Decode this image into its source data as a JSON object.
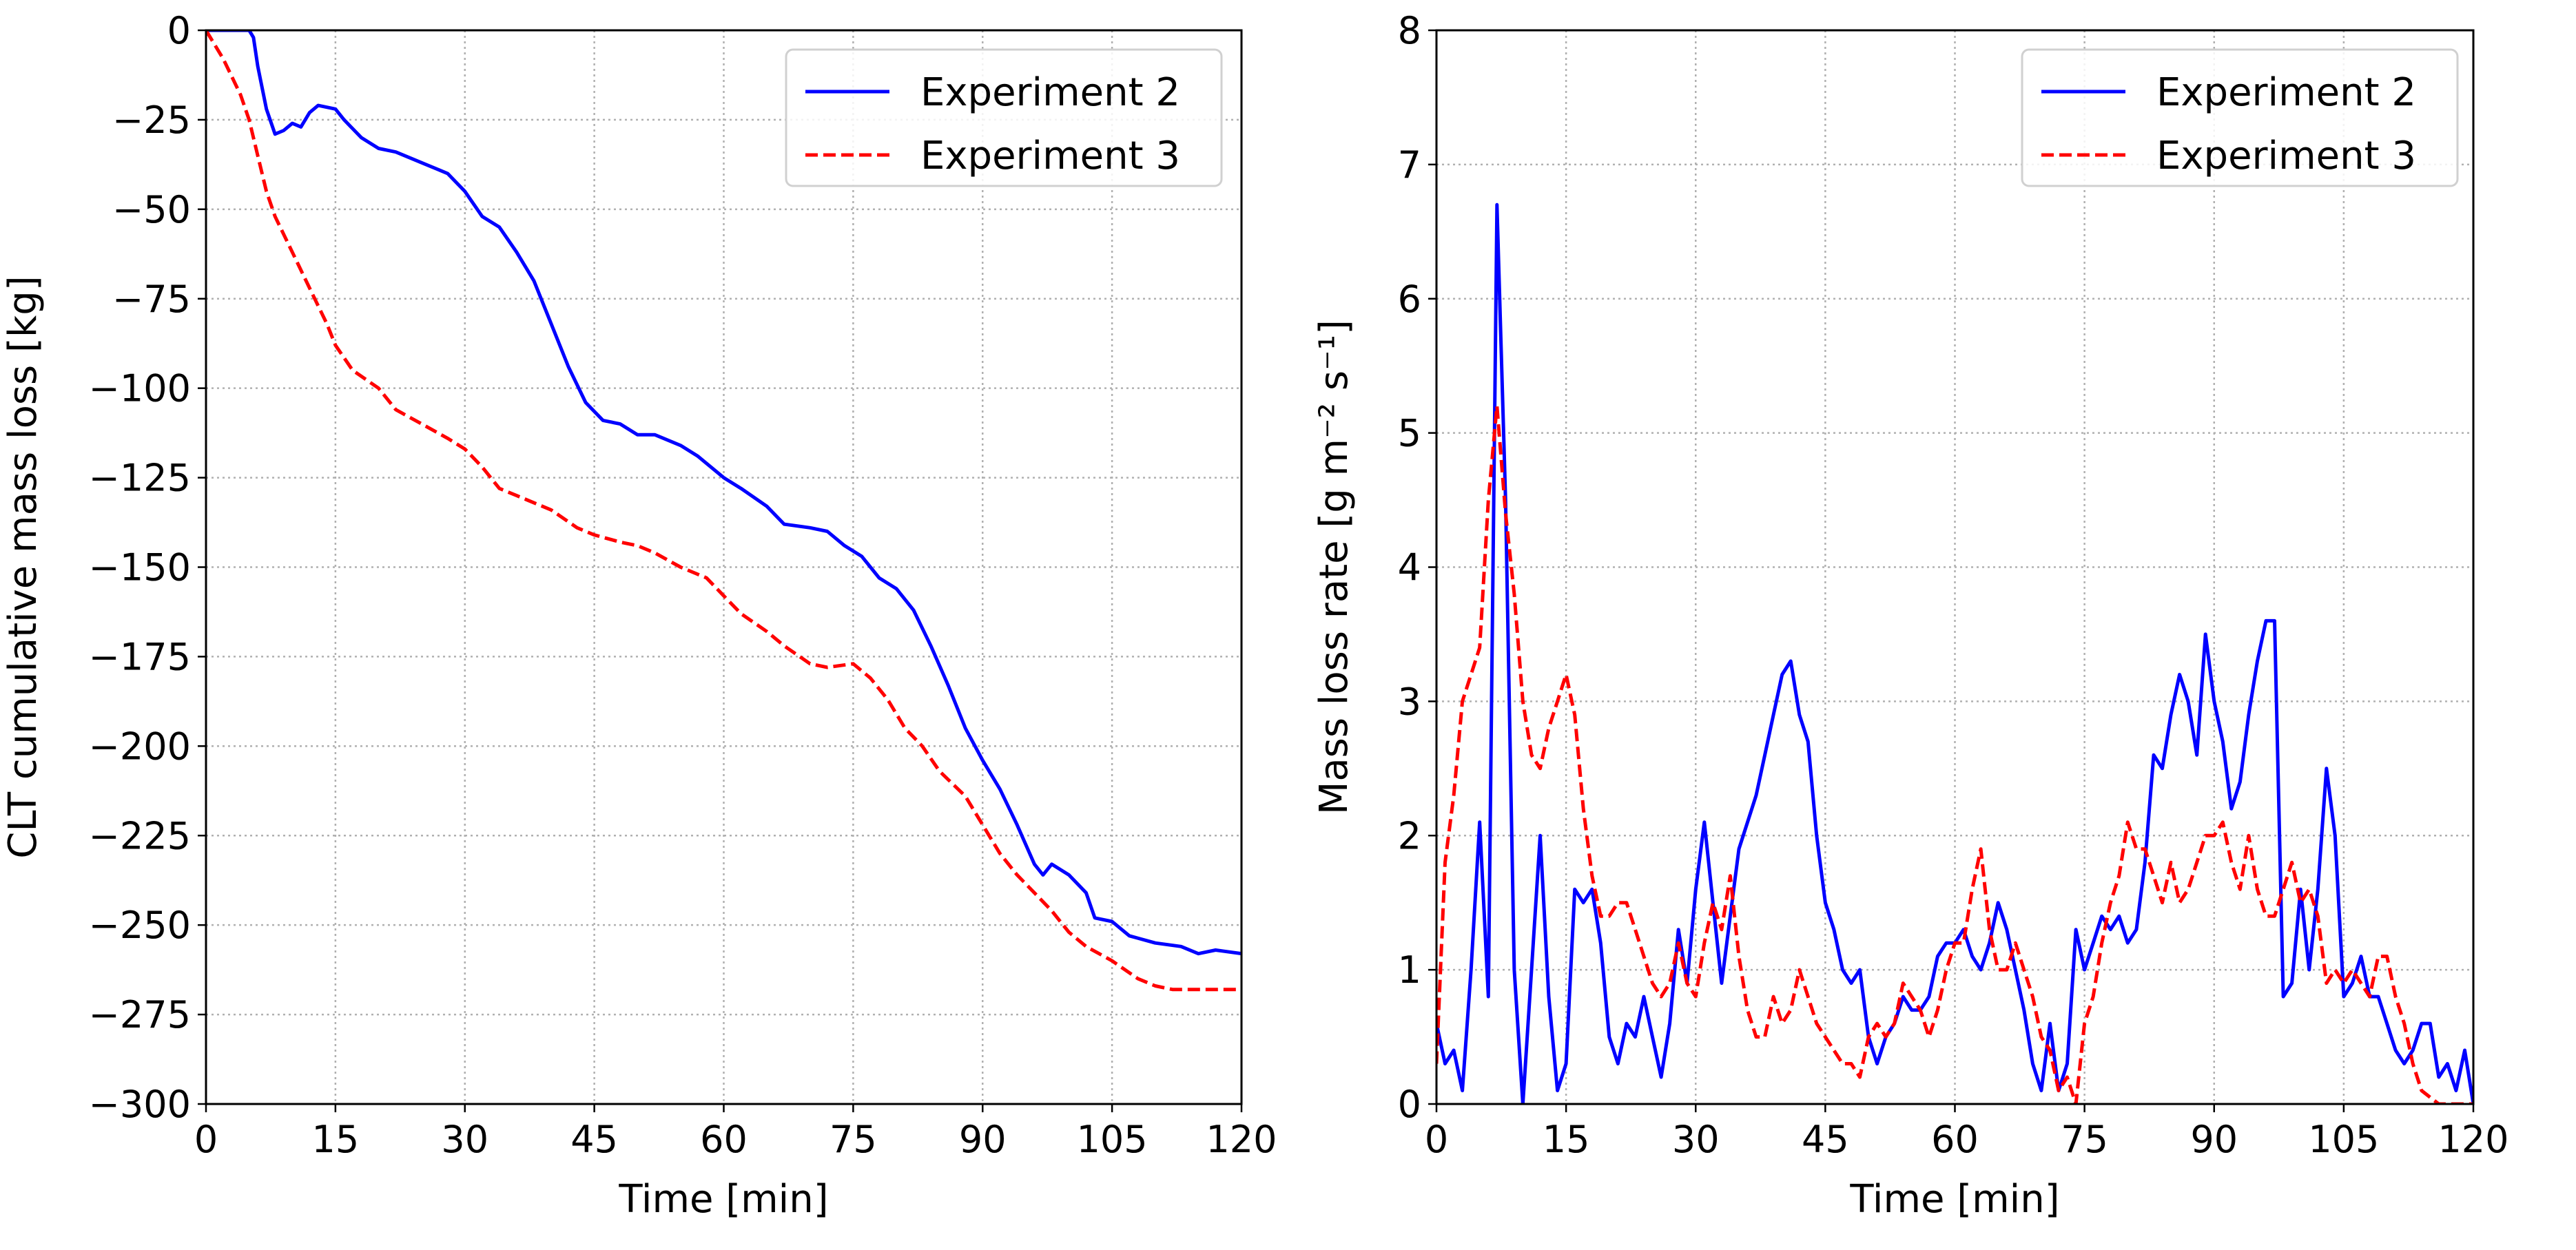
{
  "chart_data": [
    {
      "type": "line",
      "title": "",
      "xlabel": "Time [min]",
      "ylabel": "CLT cumulative mass loss [kg]",
      "xlim": [
        0,
        120
      ],
      "ylim": [
        -300,
        0
      ],
      "xticks": [
        0,
        15,
        30,
        45,
        60,
        75,
        90,
        105,
        120
      ],
      "yticks": [
        0,
        -25,
        -50,
        -75,
        -100,
        -125,
        -150,
        -175,
        -200,
        -225,
        -250,
        -275,
        -300
      ],
      "ytick_labels": [
        "0",
        "−25",
        "−50",
        "−75",
        "−100",
        "−125",
        "−150",
        "−175",
        "−200",
        "−225",
        "−250",
        "−275",
        "−300"
      ],
      "grid": true,
      "legend_position": "top-right",
      "series": [
        {
          "name": "Experiment 2",
          "color": "#0000ff",
          "style": "solid",
          "points": [
            [
              0,
              0
            ],
            [
              5,
              0
            ],
            [
              5.5,
              -2
            ],
            [
              6,
              -10
            ],
            [
              7,
              -22
            ],
            [
              8,
              -29
            ],
            [
              9,
              -28
            ],
            [
              10,
              -26
            ],
            [
              11,
              -27
            ],
            [
              12,
              -23
            ],
            [
              13,
              -21
            ],
            [
              15,
              -22
            ],
            [
              16,
              -25
            ],
            [
              18,
              -30
            ],
            [
              20,
              -33
            ],
            [
              22,
              -34
            ],
            [
              25,
              -37
            ],
            [
              27,
              -39
            ],
            [
              28,
              -40
            ],
            [
              30,
              -45
            ],
            [
              32,
              -52
            ],
            [
              34,
              -55
            ],
            [
              36,
              -62
            ],
            [
              38,
              -70
            ],
            [
              40,
              -82
            ],
            [
              42,
              -94
            ],
            [
              44,
              -104
            ],
            [
              46,
              -109
            ],
            [
              48,
              -110
            ],
            [
              50,
              -113
            ],
            [
              52,
              -113
            ],
            [
              55,
              -116
            ],
            [
              57,
              -119
            ],
            [
              60,
              -125
            ],
            [
              62,
              -128
            ],
            [
              65,
              -133
            ],
            [
              67,
              -138
            ],
            [
              70,
              -139
            ],
            [
              72,
              -140
            ],
            [
              74,
              -144
            ],
            [
              76,
              -147
            ],
            [
              78,
              -153
            ],
            [
              80,
              -156
            ],
            [
              82,
              -162
            ],
            [
              84,
              -172
            ],
            [
              86,
              -183
            ],
            [
              88,
              -195
            ],
            [
              90,
              -204
            ],
            [
              92,
              -212
            ],
            [
              94,
              -222
            ],
            [
              96,
              -233
            ],
            [
              97,
              -236
            ],
            [
              98,
              -233
            ],
            [
              100,
              -236
            ],
            [
              102,
              -241
            ],
            [
              103,
              -248
            ],
            [
              105,
              -249
            ],
            [
              107,
              -253
            ],
            [
              110,
              -255
            ],
            [
              113,
              -256
            ],
            [
              115,
              -258
            ],
            [
              117,
              -257
            ],
            [
              120,
              -258
            ]
          ]
        },
        {
          "name": "Experiment 3",
          "color": "#ff0000",
          "style": "dashed",
          "points": [
            [
              0,
              0
            ],
            [
              2,
              -8
            ],
            [
              4,
              -18
            ],
            [
              5,
              -25
            ],
            [
              6,
              -35
            ],
            [
              7,
              -45
            ],
            [
              8,
              -52
            ],
            [
              10,
              -62
            ],
            [
              12,
              -72
            ],
            [
              14,
              -82
            ],
            [
              15,
              -88
            ],
            [
              17,
              -95
            ],
            [
              20,
              -100
            ],
            [
              22,
              -106
            ],
            [
              25,
              -110
            ],
            [
              28,
              -114
            ],
            [
              30,
              -117
            ],
            [
              32,
              -122
            ],
            [
              34,
              -128
            ],
            [
              36,
              -130
            ],
            [
              40,
              -134
            ],
            [
              43,
              -139
            ],
            [
              45,
              -141
            ],
            [
              48,
              -143
            ],
            [
              50,
              -144
            ],
            [
              52,
              -146
            ],
            [
              55,
              -150
            ],
            [
              58,
              -153
            ],
            [
              60,
              -158
            ],
            [
              62,
              -163
            ],
            [
              65,
              -168
            ],
            [
              67,
              -172
            ],
            [
              70,
              -177
            ],
            [
              72,
              -178
            ],
            [
              75,
              -177
            ],
            [
              77,
              -181
            ],
            [
              79,
              -187
            ],
            [
              81,
              -195
            ],
            [
              83,
              -200
            ],
            [
              85,
              -207
            ],
            [
              88,
              -214
            ],
            [
              90,
              -222
            ],
            [
              92,
              -230
            ],
            [
              94,
              -236
            ],
            [
              96,
              -241
            ],
            [
              98,
              -246
            ],
            [
              100,
              -252
            ],
            [
              102,
              -256
            ],
            [
              105,
              -260
            ],
            [
              108,
              -265
            ],
            [
              110,
              -267
            ],
            [
              112,
              -268
            ],
            [
              120,
              -268
            ]
          ]
        }
      ]
    },
    {
      "type": "line",
      "title": "",
      "xlabel": "Time [min]",
      "ylabel": "Mass loss rate [g m⁻² s⁻¹]",
      "xlim": [
        0,
        120
      ],
      "ylim": [
        0,
        8
      ],
      "xticks": [
        0,
        15,
        30,
        45,
        60,
        75,
        90,
        105,
        120
      ],
      "yticks": [
        0,
        1,
        2,
        3,
        4,
        5,
        6,
        7,
        8
      ],
      "ytick_labels": [
        "0",
        "1",
        "2",
        "3",
        "4",
        "5",
        "6",
        "7",
        "8"
      ],
      "grid": true,
      "legend_position": "top-right",
      "series": [
        {
          "name": "Experiment 2",
          "color": "#0000ff",
          "style": "solid",
          "x_start": 0,
          "x_step": 1,
          "values": [
            0.6,
            0.3,
            0.4,
            0.1,
            1.0,
            2.1,
            0.8,
            6.7,
            4.5,
            1.0,
            0,
            1.0,
            2.0,
            0.8,
            0.1,
            0.3,
            1.6,
            1.5,
            1.6,
            1.2,
            0.5,
            0.3,
            0.6,
            0.5,
            0.8,
            0.5,
            0.2,
            0.6,
            1.3,
            0.9,
            1.6,
            2.1,
            1.5,
            0.9,
            1.4,
            1.9,
            2.1,
            2.3,
            2.6,
            2.9,
            3.2,
            3.3,
            2.9,
            2.7,
            2.0,
            1.5,
            1.3,
            1.0,
            0.9,
            1.0,
            0.5,
            0.3,
            0.5,
            0.6,
            0.8,
            0.7,
            0.7,
            0.8,
            1.1,
            1.2,
            1.2,
            1.3,
            1.1,
            1.0,
            1.2,
            1.5,
            1.3,
            1.0,
            0.7,
            0.3,
            0.1,
            0.6,
            0.1,
            0.3,
            1.3,
            1.0,
            1.2,
            1.4,
            1.3,
            1.4,
            1.2,
            1.3,
            1.8,
            2.6,
            2.5,
            2.9,
            3.2,
            3.0,
            2.6,
            3.5,
            3.0,
            2.7,
            2.2,
            2.4,
            2.9,
            3.3,
            3.6,
            3.6,
            0.8,
            0.9,
            1.6,
            1.0,
            1.6,
            2.5,
            2.0,
            0.8,
            0.9,
            1.1,
            0.8,
            0.8,
            0.6,
            0.4,
            0.3,
            0.4,
            0.6,
            0.6,
            0.2,
            0.3,
            0.1,
            0.4,
            0
          ]
        },
        {
          "name": "Experiment 3",
          "color": "#ff0000",
          "style": "dashed",
          "x_start": 0,
          "x_step": 1,
          "values": [
            0.3,
            1.8,
            2.3,
            3.0,
            3.2,
            3.4,
            4.5,
            5.2,
            4.4,
            3.8,
            3.0,
            2.6,
            2.5,
            2.8,
            3.0,
            3.2,
            2.9,
            2.2,
            1.7,
            1.4,
            1.4,
            1.5,
            1.5,
            1.3,
            1.1,
            0.9,
            0.8,
            0.9,
            1.2,
            0.9,
            0.8,
            1.2,
            1.5,
            1.3,
            1.7,
            1.1,
            0.7,
            0.5,
            0.5,
            0.8,
            0.6,
            0.7,
            1.0,
            0.8,
            0.6,
            0.5,
            0.4,
            0.3,
            0.3,
            0.2,
            0.5,
            0.6,
            0.5,
            0.6,
            0.9,
            0.8,
            0.7,
            0.5,
            0.7,
            1.0,
            1.2,
            1.2,
            1.6,
            1.9,
            1.3,
            1.0,
            1.0,
            1.2,
            1.0,
            0.8,
            0.5,
            0.4,
            0.1,
            0.2,
            0.0,
            0.6,
            0.8,
            1.2,
            1.5,
            1.7,
            2.1,
            1.9,
            1.9,
            1.7,
            1.5,
            1.8,
            1.5,
            1.6,
            1.8,
            2.0,
            2.0,
            2.1,
            1.8,
            1.6,
            2.0,
            1.6,
            1.4,
            1.4,
            1.6,
            1.8,
            1.5,
            1.6,
            1.4,
            0.9,
            1.0,
            0.9,
            1.0,
            0.9,
            0.8,
            1.1,
            1.1,
            0.8,
            0.6,
            0.3,
            0.1,
            0.05,
            0,
            0,
            0,
            0,
            0
          ]
        }
      ]
    }
  ]
}
